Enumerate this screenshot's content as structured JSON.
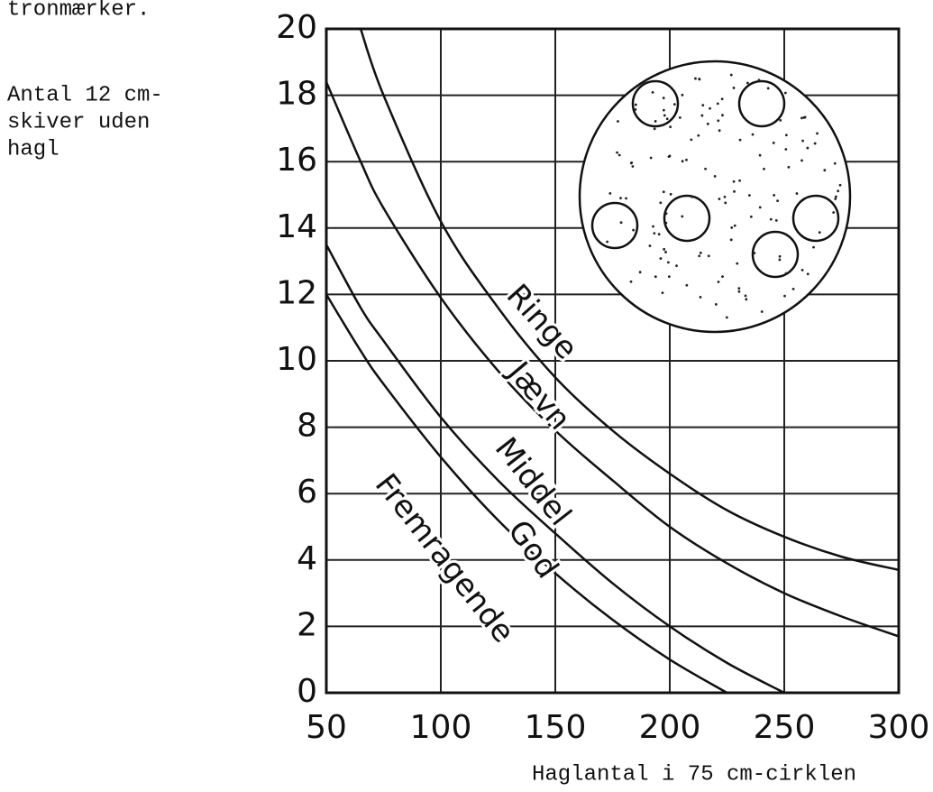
{
  "chart_data": {
    "type": "line",
    "side_texts": [
      "tronmærker.",
      "Antal 12 cm-",
      "skiver uden",
      "hagl"
    ],
    "x_label": "Haglantal i 75 cm-cirklen",
    "x": [
      50,
      65,
      75,
      100,
      125,
      150,
      175,
      200,
      225,
      250,
      275,
      300
    ],
    "series": [
      {
        "color": "#111111",
        "values": [
          null,
          20,
          18.0,
          14.2,
          11.6,
          9.5,
          7.9,
          6.6,
          5.5,
          4.7,
          4.1,
          3.7
        ]
      },
      {
        "color": "#111111",
        "values": [
          18.4,
          16.0,
          14.6,
          11.9,
          9.7,
          7.9,
          6.4,
          5.0,
          3.9,
          3.0,
          2.3,
          1.7
        ]
      },
      {
        "color": "#111111",
        "values": [
          13.5,
          11.6,
          10.6,
          8.3,
          6.4,
          4.8,
          3.3,
          2.0,
          0.9,
          0,
          null,
          null
        ]
      },
      {
        "color": "#111111",
        "values": [
          12,
          10.3,
          9.3,
          7.1,
          5.2,
          3.6,
          2.2,
          1.0,
          0,
          null,
          null,
          null
        ]
      }
    ],
    "region_labels": [
      "Ringe",
      "Jævn",
      "Middel",
      "God",
      "Fremragende"
    ],
    "xlim": [
      50,
      300
    ],
    "xticks": [
      50,
      100,
      150,
      200,
      250,
      300
    ],
    "ylim": [
      0,
      20
    ],
    "yticks": [
      0,
      2,
      4,
      6,
      8,
      10,
      12,
      14,
      16,
      18,
      20
    ],
    "grid": true
  }
}
